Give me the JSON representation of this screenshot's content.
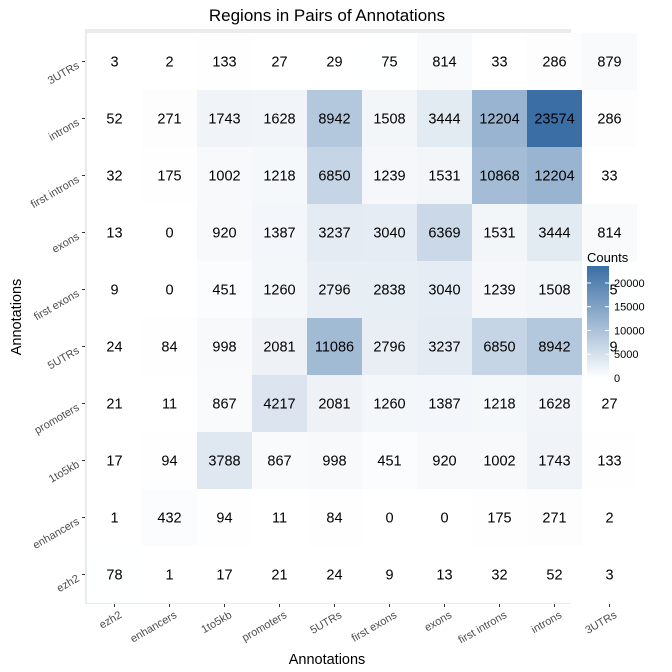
{
  "chart_data": {
    "type": "heatmap",
    "title": "Regions in Pairs of Annotations",
    "xlabel": "Annotations",
    "ylabel": "Annotations",
    "x_categories": [
      "ezh2",
      "enhancers",
      "1to5kb",
      "promoters",
      "5UTRs",
      "first exons",
      "exons",
      "first introns",
      "introns",
      "3UTRs"
    ],
    "y_categories": [
      "ezh2",
      "enhancers",
      "1to5kb",
      "promoters",
      "5UTRs",
      "first exons",
      "exons",
      "first introns",
      "introns",
      "3UTRs"
    ],
    "values": [
      [
        78,
        1,
        17,
        21,
        24,
        9,
        13,
        32,
        52,
        3
      ],
      [
        1,
        432,
        94,
        11,
        84,
        0,
        0,
        175,
        271,
        2
      ],
      [
        17,
        94,
        3788,
        867,
        998,
        451,
        920,
        1002,
        1743,
        133
      ],
      [
        21,
        11,
        867,
        4217,
        2081,
        1260,
        1387,
        1218,
        1628,
        27
      ],
      [
        24,
        84,
        998,
        2081,
        11086,
        2796,
        3237,
        6850,
        8942,
        29
      ],
      [
        9,
        0,
        451,
        1260,
        2796,
        2838,
        3040,
        1239,
        1508,
        75
      ],
      [
        13,
        0,
        920,
        1387,
        3237,
        3040,
        6369,
        1531,
        3444,
        814
      ],
      [
        32,
        175,
        1002,
        1218,
        6850,
        1239,
        1531,
        10868,
        12204,
        33
      ],
      [
        52,
        271,
        1743,
        1628,
        8942,
        1508,
        3444,
        12204,
        23574,
        286
      ],
      [
        3,
        2,
        133,
        27,
        29,
        75,
        814,
        33,
        286,
        879
      ]
    ],
    "legend": {
      "title": "Counts",
      "ticks": [
        0,
        5000,
        10000,
        15000,
        20000
      ],
      "min": 0,
      "max": 23574,
      "low_color": "#ffffff",
      "high_color": "#3a6ea5",
      "position": "right"
    },
    "panel_background": "#ebebeb",
    "grid": false
  }
}
